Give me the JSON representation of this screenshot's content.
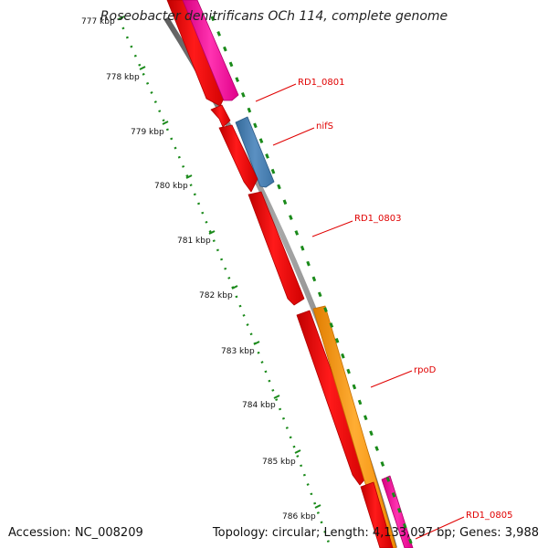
{
  "title": "Roseobacter denitrificans OCh 114, complete genome",
  "footer": {
    "accession": "Accession: NC_008209",
    "summary": "Topology: circular; Length: 4,133,097 bp; Genes: 3,988"
  },
  "ticks": [
    {
      "label": "777 kbp"
    },
    {
      "label": "778 kbp"
    },
    {
      "label": "779 kbp"
    },
    {
      "label": "780 kbp"
    },
    {
      "label": "781 kbp"
    },
    {
      "label": "782 kbp"
    },
    {
      "label": "783 kbp"
    },
    {
      "label": "784 kbp"
    },
    {
      "label": "785 kbp"
    },
    {
      "label": "786 kbp"
    }
  ],
  "gene_labels": [
    {
      "name": "RD1_0801"
    },
    {
      "name": "nifS"
    },
    {
      "name": "RD1_0803"
    },
    {
      "name": "rpoD"
    },
    {
      "name": "RD1_0805"
    }
  ],
  "colors": {
    "backbone": "#888888",
    "gene_red": "#ff0000",
    "gene_magenta": "#ff1aa6",
    "gene_blue": "#4a7fb0",
    "gene_orange": "#ff9900",
    "tick_green": "#1a8a1a",
    "label_red": "#e00000"
  }
}
